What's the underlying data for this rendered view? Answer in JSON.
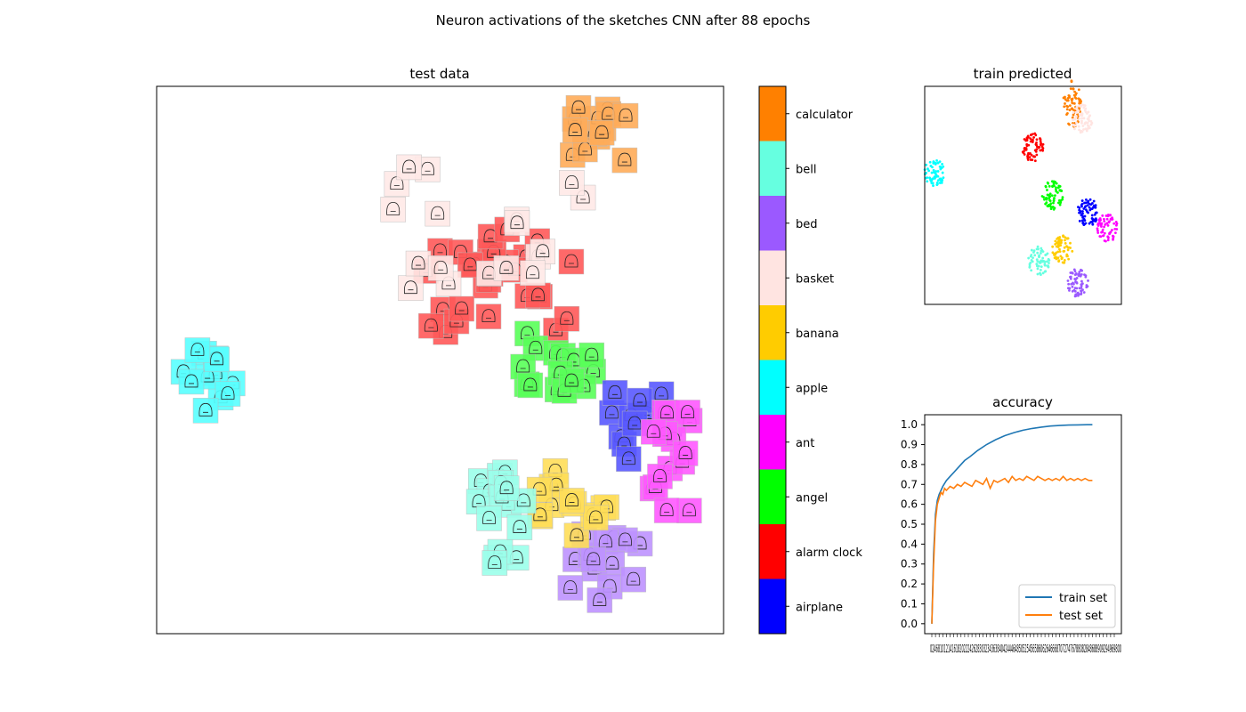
{
  "figure": {
    "title": "Neuron activations of the sketches CNN after 88 epochs"
  },
  "chart_data": [
    {
      "type": "scatter",
      "title": "test data",
      "description_note": "t-SNE style embedding with sketch thumbnails colored by class",
      "clusters": [
        {
          "class": "calculator",
          "color": "#ff8000",
          "count": 14
        },
        {
          "class": "alarm clock",
          "color": "#ff0000",
          "count": 28
        },
        {
          "class": "basket",
          "color": "#ffe4e1",
          "count": 18
        },
        {
          "class": "bed",
          "color": "#9b59ff",
          "count": 14
        },
        {
          "class": "angel",
          "color": "#00ff00",
          "count": 16
        },
        {
          "class": "apple",
          "color": "#00ffff",
          "count": 12
        },
        {
          "class": "airplane",
          "color": "#0000ff",
          "count": 12
        },
        {
          "class": "ant",
          "color": "#ff00ff",
          "count": 16
        },
        {
          "class": "banana",
          "color": "#ffcc00",
          "count": 14
        },
        {
          "class": "bell",
          "color": "#66ffe0",
          "count": 16
        }
      ]
    },
    {
      "type": "colorbar",
      "labels": [
        "calculator",
        "bell",
        "bed",
        "basket",
        "banana",
        "apple",
        "ant",
        "angel",
        "alarm clock",
        "airplane"
      ],
      "colors": [
        "#ff8000",
        "#66ffe0",
        "#9b59ff",
        "#ffe4e1",
        "#ffcc00",
        "#00ffff",
        "#ff00ff",
        "#00ff00",
        "#ff0000",
        "#0000ff"
      ]
    },
    {
      "type": "scatter",
      "title": "train predicted",
      "clusters": [
        {
          "class": "apple",
          "color": "#00ffff",
          "center": [
            0.05,
            0.6
          ]
        },
        {
          "class": "calculator",
          "color": "#ff8000",
          "center": [
            0.75,
            0.92
          ]
        },
        {
          "class": "basket",
          "color": "#ffe4e1",
          "center": [
            0.8,
            0.85
          ]
        },
        {
          "class": "alarm clock",
          "color": "#ff0000",
          "center": [
            0.55,
            0.72
          ]
        },
        {
          "class": "angel",
          "color": "#00ff00",
          "center": [
            0.65,
            0.5
          ]
        },
        {
          "class": "airplane",
          "color": "#0000ff",
          "center": [
            0.83,
            0.42
          ]
        },
        {
          "class": "ant",
          "color": "#ff00ff",
          "center": [
            0.93,
            0.35
          ]
        },
        {
          "class": "banana",
          "color": "#ffcc00",
          "center": [
            0.7,
            0.25
          ]
        },
        {
          "class": "bell",
          "color": "#66ffe0",
          "center": [
            0.58,
            0.2
          ]
        },
        {
          "class": "bed",
          "color": "#9b59ff",
          "center": [
            0.78,
            0.1
          ]
        }
      ]
    },
    {
      "type": "line",
      "title": "accuracy",
      "xlim": [
        0,
        100
      ],
      "ylim": [
        -0.05,
        1.05
      ],
      "yticks": [
        "0.0",
        "0.1",
        "0.2",
        "0.3",
        "0.4",
        "0.5",
        "0.6",
        "0.7",
        "0.8",
        "0.9",
        "1.0"
      ],
      "xtick_text": "0246810121416182022242628303234363840424446485052545658606264666870727476788082848688909294969800",
      "legend_position": "lower right",
      "series": [
        {
          "name": "train set",
          "color": "#1f77b4",
          "x": [
            0,
            1,
            2,
            3,
            4,
            5,
            6,
            8,
            10,
            12,
            15,
            18,
            21,
            25,
            30,
            35,
            40,
            45,
            50,
            55,
            60,
            65,
            70,
            75,
            80,
            85,
            88
          ],
          "y": [
            0.0,
            0.35,
            0.55,
            0.62,
            0.65,
            0.67,
            0.69,
            0.72,
            0.74,
            0.76,
            0.79,
            0.82,
            0.84,
            0.87,
            0.9,
            0.925,
            0.945,
            0.96,
            0.972,
            0.981,
            0.988,
            0.993,
            0.996,
            0.998,
            0.999,
            1.0,
            1.0
          ]
        },
        {
          "name": "test set",
          "color": "#ff7f0e",
          "x": [
            0,
            1,
            2,
            3,
            4,
            5,
            6,
            7,
            8,
            10,
            12,
            14,
            16,
            18,
            20,
            22,
            24,
            26,
            28,
            30,
            32,
            34,
            36,
            38,
            40,
            42,
            44,
            46,
            48,
            50,
            52,
            54,
            56,
            58,
            60,
            62,
            64,
            66,
            68,
            70,
            72,
            74,
            76,
            78,
            80,
            82,
            84,
            86,
            88
          ],
          "y": [
            0.0,
            0.3,
            0.52,
            0.6,
            0.63,
            0.66,
            0.65,
            0.68,
            0.67,
            0.69,
            0.68,
            0.7,
            0.69,
            0.71,
            0.7,
            0.69,
            0.72,
            0.71,
            0.7,
            0.73,
            0.68,
            0.72,
            0.71,
            0.72,
            0.73,
            0.71,
            0.74,
            0.72,
            0.73,
            0.72,
            0.74,
            0.73,
            0.72,
            0.74,
            0.73,
            0.72,
            0.73,
            0.72,
            0.73,
            0.72,
            0.74,
            0.72,
            0.73,
            0.72,
            0.73,
            0.72,
            0.73,
            0.72,
            0.72
          ]
        }
      ]
    }
  ]
}
